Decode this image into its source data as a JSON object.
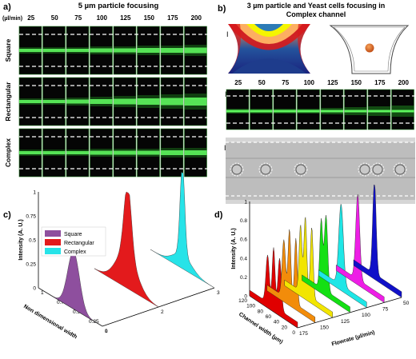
{
  "panel_a": {
    "letter": "a)",
    "title": "5 µm particle focusing",
    "unit_label": "(µl/min)",
    "flowrates": [
      "25",
      "50",
      "75",
      "100",
      "125",
      "150",
      "175",
      "200"
    ],
    "rows": [
      "Square",
      "Rectangular",
      "Complex"
    ]
  },
  "panel_b": {
    "letter": "b)",
    "title_line1": "3 µm particle and Yeast cells focusing in",
    "title_line2": "Complex channel",
    "roman": [
      "I",
      "II",
      "III"
    ],
    "flowrates": [
      "25",
      "50",
      "75",
      "100",
      "125",
      "150",
      "175",
      "200"
    ]
  },
  "panel_c": {
    "letter": "c)",
    "ylabel": "Intensity (A. U.)",
    "xlabel": "Non dimensional width",
    "yticks": [
      "0",
      "0.25",
      "0.5",
      "0.75",
      "1"
    ],
    "width_ticks": [
      "0",
      "0.25",
      "0.5",
      "0.75",
      "1"
    ],
    "depth_ticks": [
      "1",
      "2",
      "3"
    ],
    "legend": [
      {
        "name": "Square",
        "color": "#8e4f9e"
      },
      {
        "name": "Rectangular",
        "color": "#e31a1c"
      },
      {
        "name": "Complex",
        "color": "#27e3e8"
      }
    ]
  },
  "panel_d": {
    "letter": "d)",
    "ylabel": "Intensity (A. U.)",
    "xlabel": "Channel width (µm)",
    "zlabel": "Flowrate (µl/min)",
    "yticks": [
      "0",
      "0.2",
      "0.4",
      "0.6",
      "0.8",
      "1"
    ],
    "width_ticks": [
      "0",
      "20",
      "40",
      "60",
      "80",
      "100",
      "120"
    ],
    "flow_ticks": [
      "175",
      "150",
      "125",
      "100",
      "75",
      "50"
    ],
    "series_colors": [
      "#e00000",
      "#f28c0a",
      "#f2e500",
      "#14e014",
      "#1ee6e6",
      "#ee1ee6",
      "#1010c8"
    ]
  }
}
